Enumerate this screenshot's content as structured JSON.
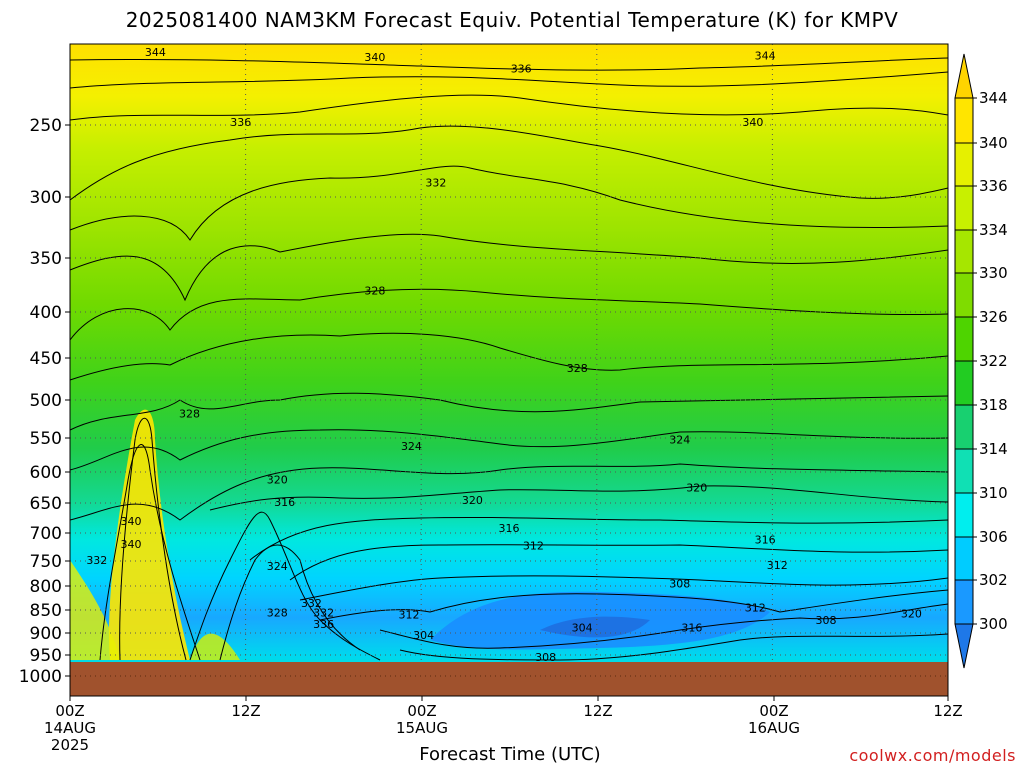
{
  "title": "2025081400 NAM3KM Forecast Equiv. Potential Temperature (K) for KMPV",
  "xlabel": "Forecast Time (UTC)",
  "credit": "coolwx.com/models",
  "chart_data": {
    "type": "contour",
    "y_ticks": [
      "250",
      "300",
      "350",
      "400",
      "450",
      "500",
      "550",
      "600",
      "650",
      "700",
      "750",
      "800",
      "850",
      "900",
      "950",
      "1000"
    ],
    "x_ticks": [
      {
        "l1": "00Z",
        "l2": "14AUG",
        "l3": "2025"
      },
      {
        "l1": "12Z",
        "l2": "",
        "l3": ""
      },
      {
        "l1": "00Z",
        "l2": "15AUG",
        "l3": ""
      },
      {
        "l1": "12Z",
        "l2": "",
        "l3": ""
      },
      {
        "l1": "00Z",
        "l2": "16AUG",
        "l3": ""
      },
      {
        "l1": "12Z",
        "l2": "",
        "l3": ""
      }
    ],
    "colorbar_ticks": [
      "344",
      "340",
      "336",
      "334",
      "330",
      "326",
      "322",
      "318",
      "314",
      "310",
      "306",
      "302",
      "300"
    ],
    "colorbar_colors": [
      "#ffe500",
      "#e6f000",
      "#c8f000",
      "#a6e600",
      "#7fdc00",
      "#4ed400",
      "#22cc22",
      "#18d070",
      "#10e0b4",
      "#00eeee",
      "#00ccff",
      "#1a99ff",
      "#1e78e8"
    ],
    "contour_labels": [
      {
        "text": "344",
        "h": 3.5,
        "p": 205
      },
      {
        "text": "340",
        "h": 12.5,
        "p": 208
      },
      {
        "text": "336",
        "h": 18.5,
        "p": 215
      },
      {
        "text": "344",
        "h": 28.5,
        "p": 207
      },
      {
        "text": "336",
        "h": 7.0,
        "p": 248
      },
      {
        "text": "340",
        "h": 28.0,
        "p": 248
      },
      {
        "text": "332",
        "h": 15.0,
        "p": 290
      },
      {
        "text": "328",
        "h": 12.5,
        "p": 380
      },
      {
        "text": "328",
        "h": 20.8,
        "p": 462
      },
      {
        "text": "328",
        "h": 4.9,
        "p": 518
      },
      {
        "text": "324",
        "h": 14.0,
        "p": 562
      },
      {
        "text": "324",
        "h": 25.0,
        "p": 552
      },
      {
        "text": "320",
        "h": 8.5,
        "p": 612
      },
      {
        "text": "320",
        "h": 16.5,
        "p": 645
      },
      {
        "text": "320",
        "h": 25.7,
        "p": 625
      },
      {
        "text": "316",
        "h": 8.8,
        "p": 648
      },
      {
        "text": "316",
        "h": 18.0,
        "p": 692
      },
      {
        "text": "316",
        "h": 28.5,
        "p": 712
      },
      {
        "text": "312",
        "h": 19.0,
        "p": 722
      },
      {
        "text": "312",
        "h": 29.0,
        "p": 758
      },
      {
        "text": "308",
        "h": 25.0,
        "p": 795
      },
      {
        "text": "308",
        "h": 19.5,
        "p": 955
      },
      {
        "text": "304",
        "h": 14.5,
        "p": 905
      },
      {
        "text": "304",
        "h": 21.0,
        "p": 888
      },
      {
        "text": "312",
        "h": 13.9,
        "p": 860
      },
      {
        "text": "312",
        "h": 28.1,
        "p": 845
      },
      {
        "text": "316",
        "h": 25.5,
        "p": 888
      },
      {
        "text": "308",
        "h": 31.0,
        "p": 872
      },
      {
        "text": "320",
        "h": 34.5,
        "p": 858
      },
      {
        "text": "332",
        "h": 10.4,
        "p": 855
      },
      {
        "text": "336",
        "h": 10.4,
        "p": 880
      },
      {
        "text": "328",
        "h": 8.5,
        "p": 855
      },
      {
        "text": "332",
        "h": 9.9,
        "p": 835
      },
      {
        "text": "324",
        "h": 8.5,
        "p": 760
      },
      {
        "text": "340",
        "h": 2.5,
        "p": 680
      },
      {
        "text": "340",
        "h": 2.5,
        "p": 720
      },
      {
        "text": "332",
        "h": 1.1,
        "p": 748
      }
    ]
  }
}
